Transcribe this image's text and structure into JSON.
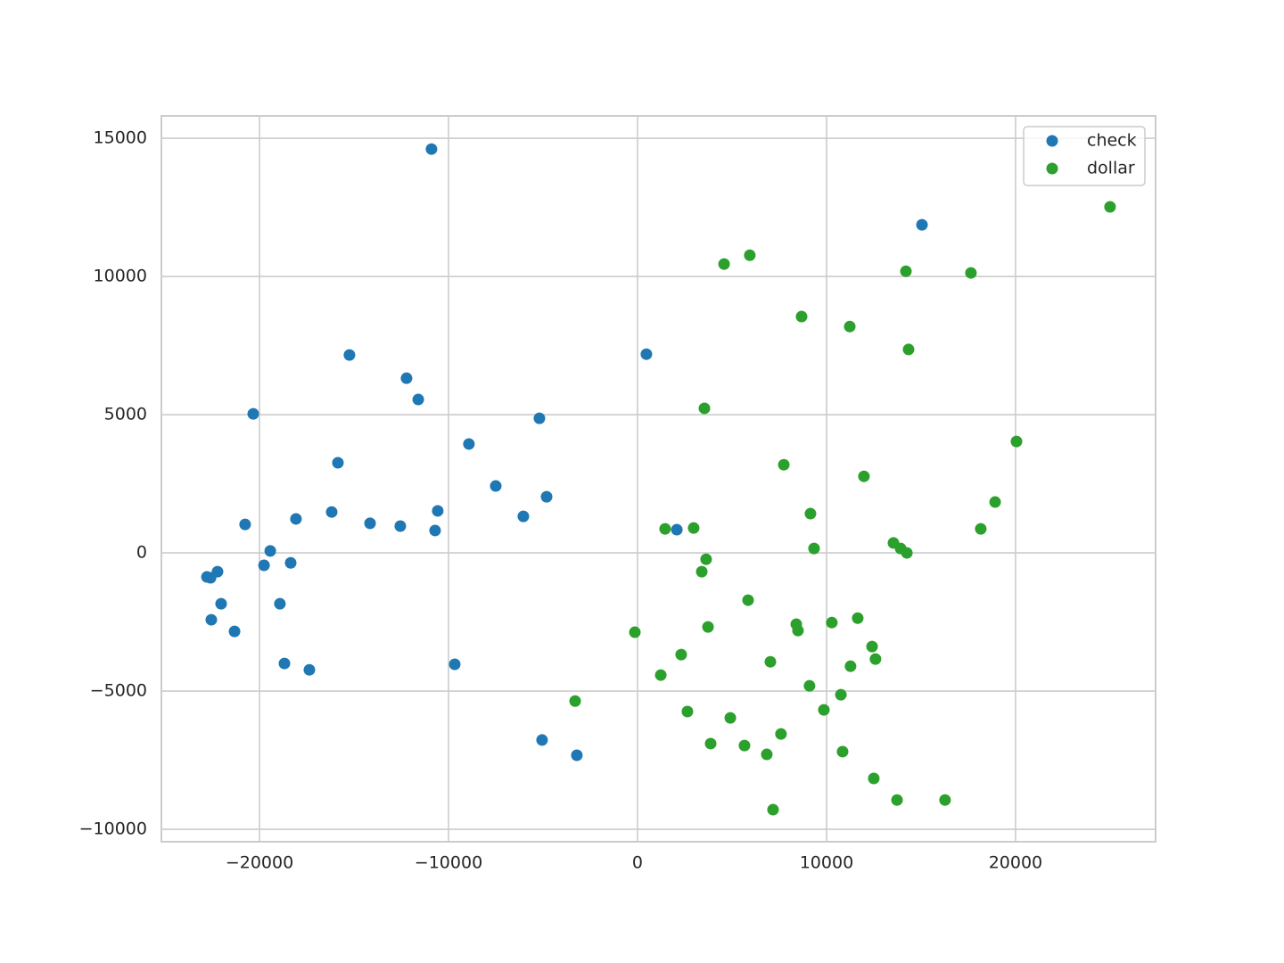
{
  "chart_data": {
    "type": "scatter",
    "xlim": [
      -25190,
      27410
    ],
    "ylim": [
      -10450,
      15810
    ],
    "xticks": [
      {
        "value": -20000,
        "label": "−20000"
      },
      {
        "value": -10000,
        "label": "−10000"
      },
      0,
      10000,
      20000
    ],
    "yticks": [
      {
        "value": -10000,
        "label": "−10000"
      },
      {
        "value": -5000,
        "label": "−5000"
      },
      0,
      5000,
      10000,
      15000
    ],
    "grid": true,
    "legend": "upper right",
    "series": [
      {
        "name": "check",
        "color": "#1f77b4",
        "x": [
          -10900,
          15050,
          -15240,
          470,
          -12220,
          -11600,
          -20330,
          -5190,
          -8920,
          -15850,
          -7500,
          -4810,
          -16180,
          -10570,
          -6040,
          -18070,
          -20760,
          -14150,
          -12550,
          -10710,
          2080,
          -19430,
          -22780,
          -22590,
          -22220,
          -19760,
          -18350,
          -22030,
          -18920,
          -22550,
          -21320,
          -18680,
          -17360,
          -9670,
          -5050,
          -3210
        ],
        "values": [
          14610,
          11870,
          7160,
          7190,
          6320,
          5550,
          5030,
          4870,
          3940,
          3260,
          2420,
          2030,
          1480,
          1520,
          1320,
          1230,
          1030,
          1070,
          970,
          810,
          840,
          70,
          -870,
          -900,
          -680,
          -450,
          -360,
          -1840,
          -1840,
          -2420,
          -2840,
          -4000,
          -4230,
          -4030,
          -6770,
          -7320
        ]
      },
      {
        "name": "dollar",
        "color": "#2ca02c",
        "x": [
          25000,
          5940,
          4580,
          14200,
          17640,
          8680,
          11230,
          14340,
          3540,
          20050,
          7740,
          11980,
          18920,
          9150,
          1460,
          2970,
          18160,
          13540,
          9340,
          13920,
          14250,
          3630,
          3400,
          5850,
          11650,
          10280,
          8400,
          8490,
          3730,
          -140,
          12410,
          12590,
          2310,
          7030,
          11270,
          1230,
          9100,
          10760,
          -3300,
          2640,
          9860,
          4910,
          7590,
          3870,
          5660,
          6840,
          10850,
          12500,
          13730,
          16270,
          7170
        ],
        "values": [
          12520,
          10770,
          10450,
          10190,
          10130,
          8550,
          8190,
          7360,
          5230,
          4030,
          3190,
          2770,
          1840,
          1420,
          870,
          900,
          870,
          360,
          160,
          160,
          0,
          -230,
          -680,
          -1710,
          -2360,
          -2520,
          -2580,
          -2810,
          -2680,
          -2870,
          -3390,
          -3840,
          -3680,
          -3940,
          -4100,
          -4420,
          -4810,
          -5130,
          -5360,
          -5740,
          -5680,
          -5970,
          -6550,
          -6900,
          -6970,
          -7290,
          -7190,
          -8160,
          -8940,
          -8940,
          -9290
        ]
      }
    ]
  }
}
